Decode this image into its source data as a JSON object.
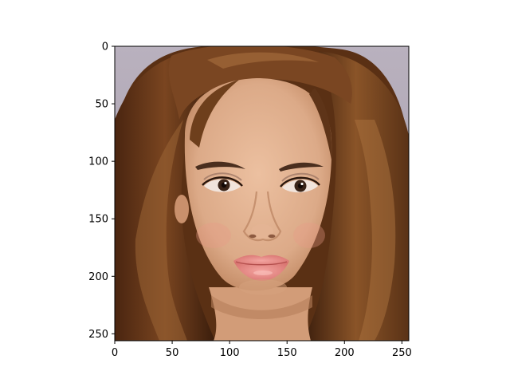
{
  "image": {
    "subject": "portrait-face-photo",
    "colors": {
      "background": "#b8b0bd",
      "hair": "#6b3c1c",
      "hair_dark": "#2d160a",
      "hair_highlight": "#a26a3a",
      "skin": "#e2b08e",
      "skin_shadow": "#c68c68",
      "lips": "#e58a86",
      "eyebrows": "#4a2e1e",
      "eyes": "#3a2418"
    }
  },
  "axes": {
    "xlim": [
      0,
      256
    ],
    "ylim": [
      256,
      0
    ],
    "x_ticks": [
      0,
      50,
      100,
      150,
      200,
      250
    ],
    "y_ticks": [
      0,
      50,
      100,
      150,
      200,
      250
    ],
    "x_tick_labels": [
      "0",
      "50",
      "100",
      "150",
      "200",
      "250"
    ],
    "y_tick_labels": [
      "0",
      "50",
      "100",
      "150",
      "200",
      "250"
    ]
  }
}
